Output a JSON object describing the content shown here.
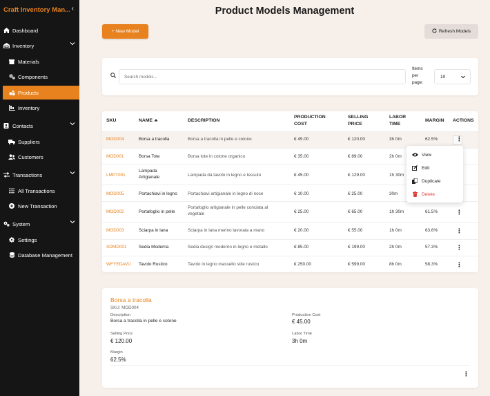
{
  "sidebar": {
    "app_title": "Craft Inventory Man...",
    "items": [
      {
        "label": "Dashboard",
        "icon": "home-icon"
      },
      {
        "label": "Inventory",
        "icon": "warehouse-icon"
      },
      {
        "label": "Materials",
        "icon": "box-icon"
      },
      {
        "label": "Components",
        "icon": "cogs-icon"
      },
      {
        "label": "Products",
        "icon": "shapes-icon"
      },
      {
        "label": "Inventory",
        "icon": "inventory-icon"
      },
      {
        "label": "Contacts",
        "icon": "address-book-icon"
      },
      {
        "label": "Suppliers",
        "icon": "truck-icon"
      },
      {
        "label": "Customers",
        "icon": "users-icon"
      },
      {
        "label": "Transactions",
        "icon": "exchange-icon"
      },
      {
        "label": "All Transactions",
        "icon": "list-icon"
      },
      {
        "label": "New Transaction",
        "icon": "plus-circle-icon"
      },
      {
        "label": "System",
        "icon": "cogs-icon"
      },
      {
        "label": "Settings",
        "icon": "gear-icon"
      },
      {
        "label": "Database Management",
        "icon": "database-icon"
      }
    ]
  },
  "header": {
    "title": "Product Models Management",
    "new_button": "+ New Model",
    "refresh_button": "Refresh Models"
  },
  "search": {
    "placeholder": "Search models...",
    "items_per_page_label": "Items per page:",
    "items_per_page_value": "10"
  },
  "table": {
    "headers": {
      "sku": "SKU",
      "name": "NAME",
      "description": "DESCRIPTION",
      "production_cost": "PRODUCTION COST",
      "selling_price": "SELLING PRICE",
      "labor_time": "LABOR TIME",
      "margin": "MARGIN",
      "actions": "ACTIONS"
    },
    "rows": [
      {
        "sku": "MOD004",
        "name": "Borsa a tracolla",
        "description": "Borsa a tracolla in pelle e cotone",
        "cost": "€ 45.00",
        "price": "€ 120.00",
        "labor": "3h 0m",
        "margin": "62.5%"
      },
      {
        "sku": "MOD001",
        "name": "Borsa Tote",
        "description": "Borsa tote in cotone organico",
        "cost": "€ 35.00",
        "price": "€ 89.00",
        "labor": "2h 0m",
        "margin": ""
      },
      {
        "sku": "LMPT001",
        "name": "Lampada Artigianale",
        "description": "Lampada da tavolo in legno e tessuto",
        "cost": "€ 45.00",
        "price": "€ 129.00",
        "labor": "1h 30m",
        "margin": ""
      },
      {
        "sku": "MOD005",
        "name": "Portachiavi in legno",
        "description": "Portachiavi artigianale in legno di noce",
        "cost": "€ 10.00",
        "price": "€ 25.00",
        "labor": "30m",
        "margin": ""
      },
      {
        "sku": "MOD002",
        "name": "Portafoglio in pelle",
        "description": "Portafoglio artigianale in pelle conciata al vegetale",
        "cost": "€ 25.00",
        "price": "€ 65.00",
        "labor": "1h 30m",
        "margin": "61.5%"
      },
      {
        "sku": "MOD003",
        "name": "Sciarpa in lana",
        "description": "Sciarpa in lana merino lavorata a mano",
        "cost": "€ 20.00",
        "price": "€ 55.00",
        "labor": "1h 0m",
        "margin": "63.6%"
      },
      {
        "sku": "SDMD001",
        "name": "Sedia Moderna",
        "description": "Sedia design moderno in legno e metallo",
        "cost": "€ 85.00",
        "price": "€ 199.00",
        "labor": "2h 0m",
        "margin": "57.3%"
      },
      {
        "sku": "WFYEDAVU",
        "name": "Tavolo Rustico",
        "description": "Tavolo in legno massello stile rustico",
        "cost": "€ 250.00",
        "price": "€ 599.00",
        "labor": "8h 0m",
        "margin": "58.3%"
      }
    ]
  },
  "actions_menu": {
    "view": "View",
    "edit": "Edit",
    "duplicate": "Duplicate",
    "delete": "Delete"
  },
  "detail": {
    "title": "Borsa a tracolla",
    "sku": "SKU: MOD004",
    "description_label": "Description",
    "description": "Borsa a tracolla in pelle e cotone",
    "production_cost_label": "Production Cost",
    "production_cost": "€ 45.00",
    "selling_price_label": "Selling Price",
    "selling_price": "€ 120.00",
    "labor_time_label": "Labor Time",
    "labor_time": "3h 0m",
    "margin_label": "Margin",
    "margin": "62.5%"
  },
  "colors": {
    "accent": "#e8821e",
    "sidebar_bg": "#151515",
    "page_bg": "#f7efe9",
    "danger": "#e03b3b"
  }
}
